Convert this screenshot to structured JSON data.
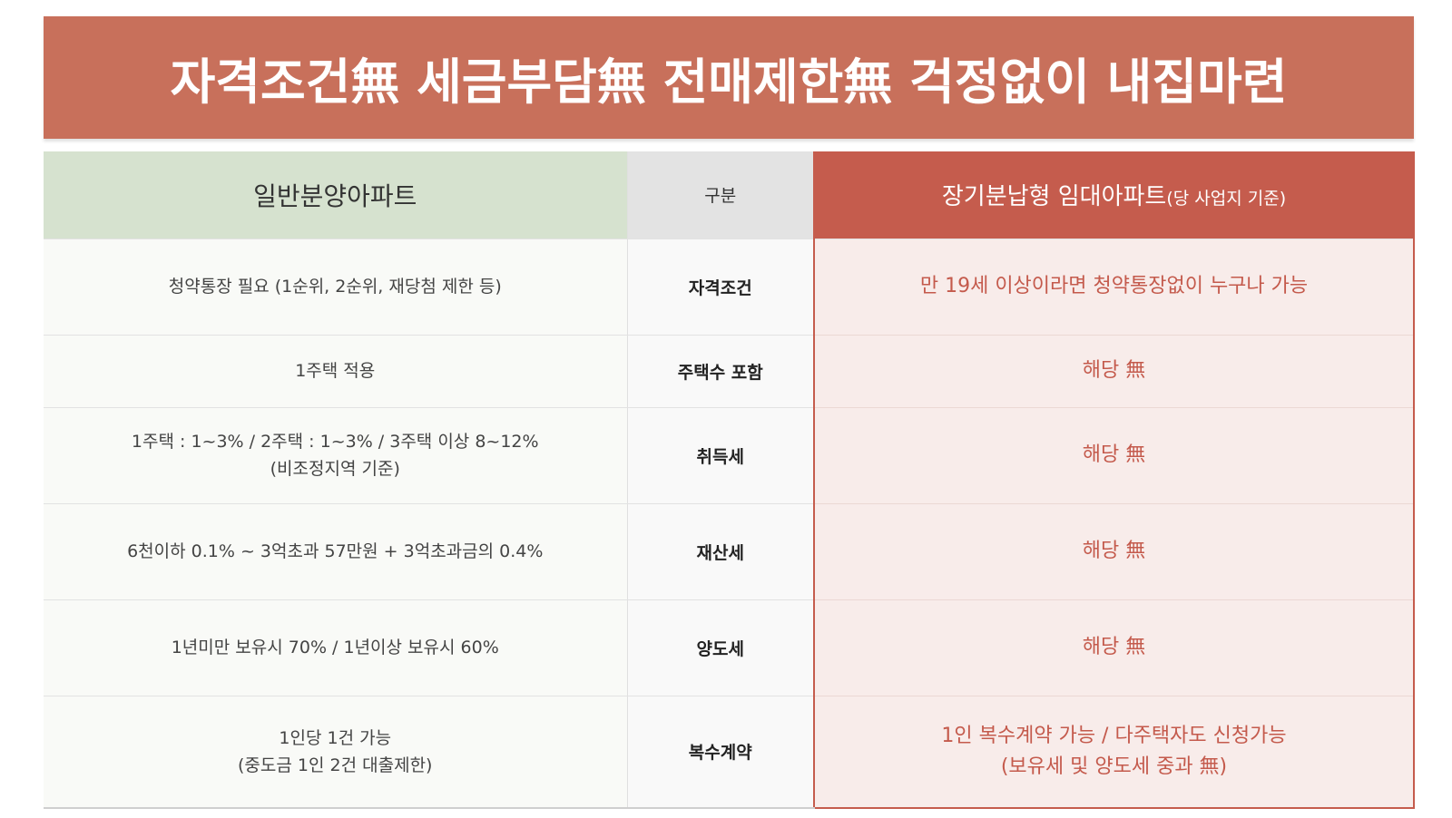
{
  "banner": {
    "title": "자격조건無 세금부담無 전매제한無 걱정없이 내집마련"
  },
  "table": {
    "headers": {
      "left": "일반분양아파트",
      "middle": "구분",
      "right_main": "장기분납형 임대아파트",
      "right_sub": "(당 사업지 기준)"
    },
    "rows": [
      {
        "category": "자격조건",
        "general": [
          "청약통장 필요 (1순위, 2순위, 재당첨 제한 등)"
        ],
        "rental": [
          "만 19세 이상이라면 청약통장없이 누구나 가능"
        ]
      },
      {
        "category": "주택수 포함",
        "general": [
          "1주택 적용"
        ],
        "rental": [
          "해당 無"
        ]
      },
      {
        "category": "취득세",
        "general": [
          "1주택 : 1~3% / 2주택 : 1~3% / 3주택 이상 8~12%",
          "(비조정지역 기준)"
        ],
        "rental": [
          "해당 無"
        ]
      },
      {
        "category": "재산세",
        "general": [
          "6천이하 0.1% ~ 3억초과 57만원 + 3억초과금의 0.4%"
        ],
        "rental": [
          "해당 無"
        ]
      },
      {
        "category": "양도세",
        "general": [
          "1년미만 보유시 70% / 1년이상 보유시 60%"
        ],
        "rental": [
          "해당 無"
        ]
      },
      {
        "category": "복수계약",
        "general": [
          "1인당 1건 가능",
          "(중도금 1인 2건 대출제한)"
        ],
        "rental": [
          "1인 복수계약 가능 / 다주택자도 신청가능",
          "(보유세 및 양도세 중과 無)"
        ]
      }
    ]
  },
  "colors": {
    "banner_bg": "#c8705b",
    "rental_header_bg": "#c55c4d",
    "rental_text": "#c45a4c",
    "general_header_bg": "#d6e2cf",
    "rental_cell_bg": "#f8ecea"
  }
}
